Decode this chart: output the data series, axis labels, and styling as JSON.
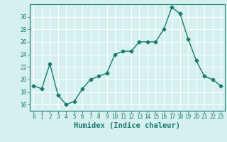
{
  "x": [
    0,
    1,
    2,
    3,
    4,
    5,
    6,
    7,
    8,
    9,
    10,
    11,
    12,
    13,
    14,
    15,
    16,
    17,
    18,
    19,
    20,
    21,
    22,
    23
  ],
  "y": [
    19,
    18.5,
    22.5,
    17.5,
    16,
    16.5,
    18.5,
    20,
    20.5,
    21,
    24,
    24.5,
    24.5,
    26,
    26,
    26,
    28,
    31.5,
    30.5,
    26.5,
    23,
    20.5,
    20,
    19
  ],
  "line_color": "#1a7a6e",
  "marker": "D",
  "marker_size": 2.5,
  "linewidth": 1.0,
  "background_color": "#d6f0f0",
  "grid_color": "#ffffff",
  "xlabel": "Humidex (Indice chaleur)",
  "xlim": [
    -0.5,
    23.5
  ],
  "ylim": [
    15,
    32
  ],
  "yticks": [
    16,
    18,
    20,
    22,
    24,
    26,
    28,
    30
  ],
  "xticks": [
    0,
    1,
    2,
    3,
    4,
    5,
    6,
    7,
    8,
    9,
    10,
    11,
    12,
    13,
    14,
    15,
    16,
    17,
    18,
    19,
    20,
    21,
    22,
    23
  ],
  "tick_fontsize": 5.5,
  "xlabel_fontsize": 7.5,
  "tick_color": "#1a7a6e",
  "axis_color": "#1a7a6e"
}
